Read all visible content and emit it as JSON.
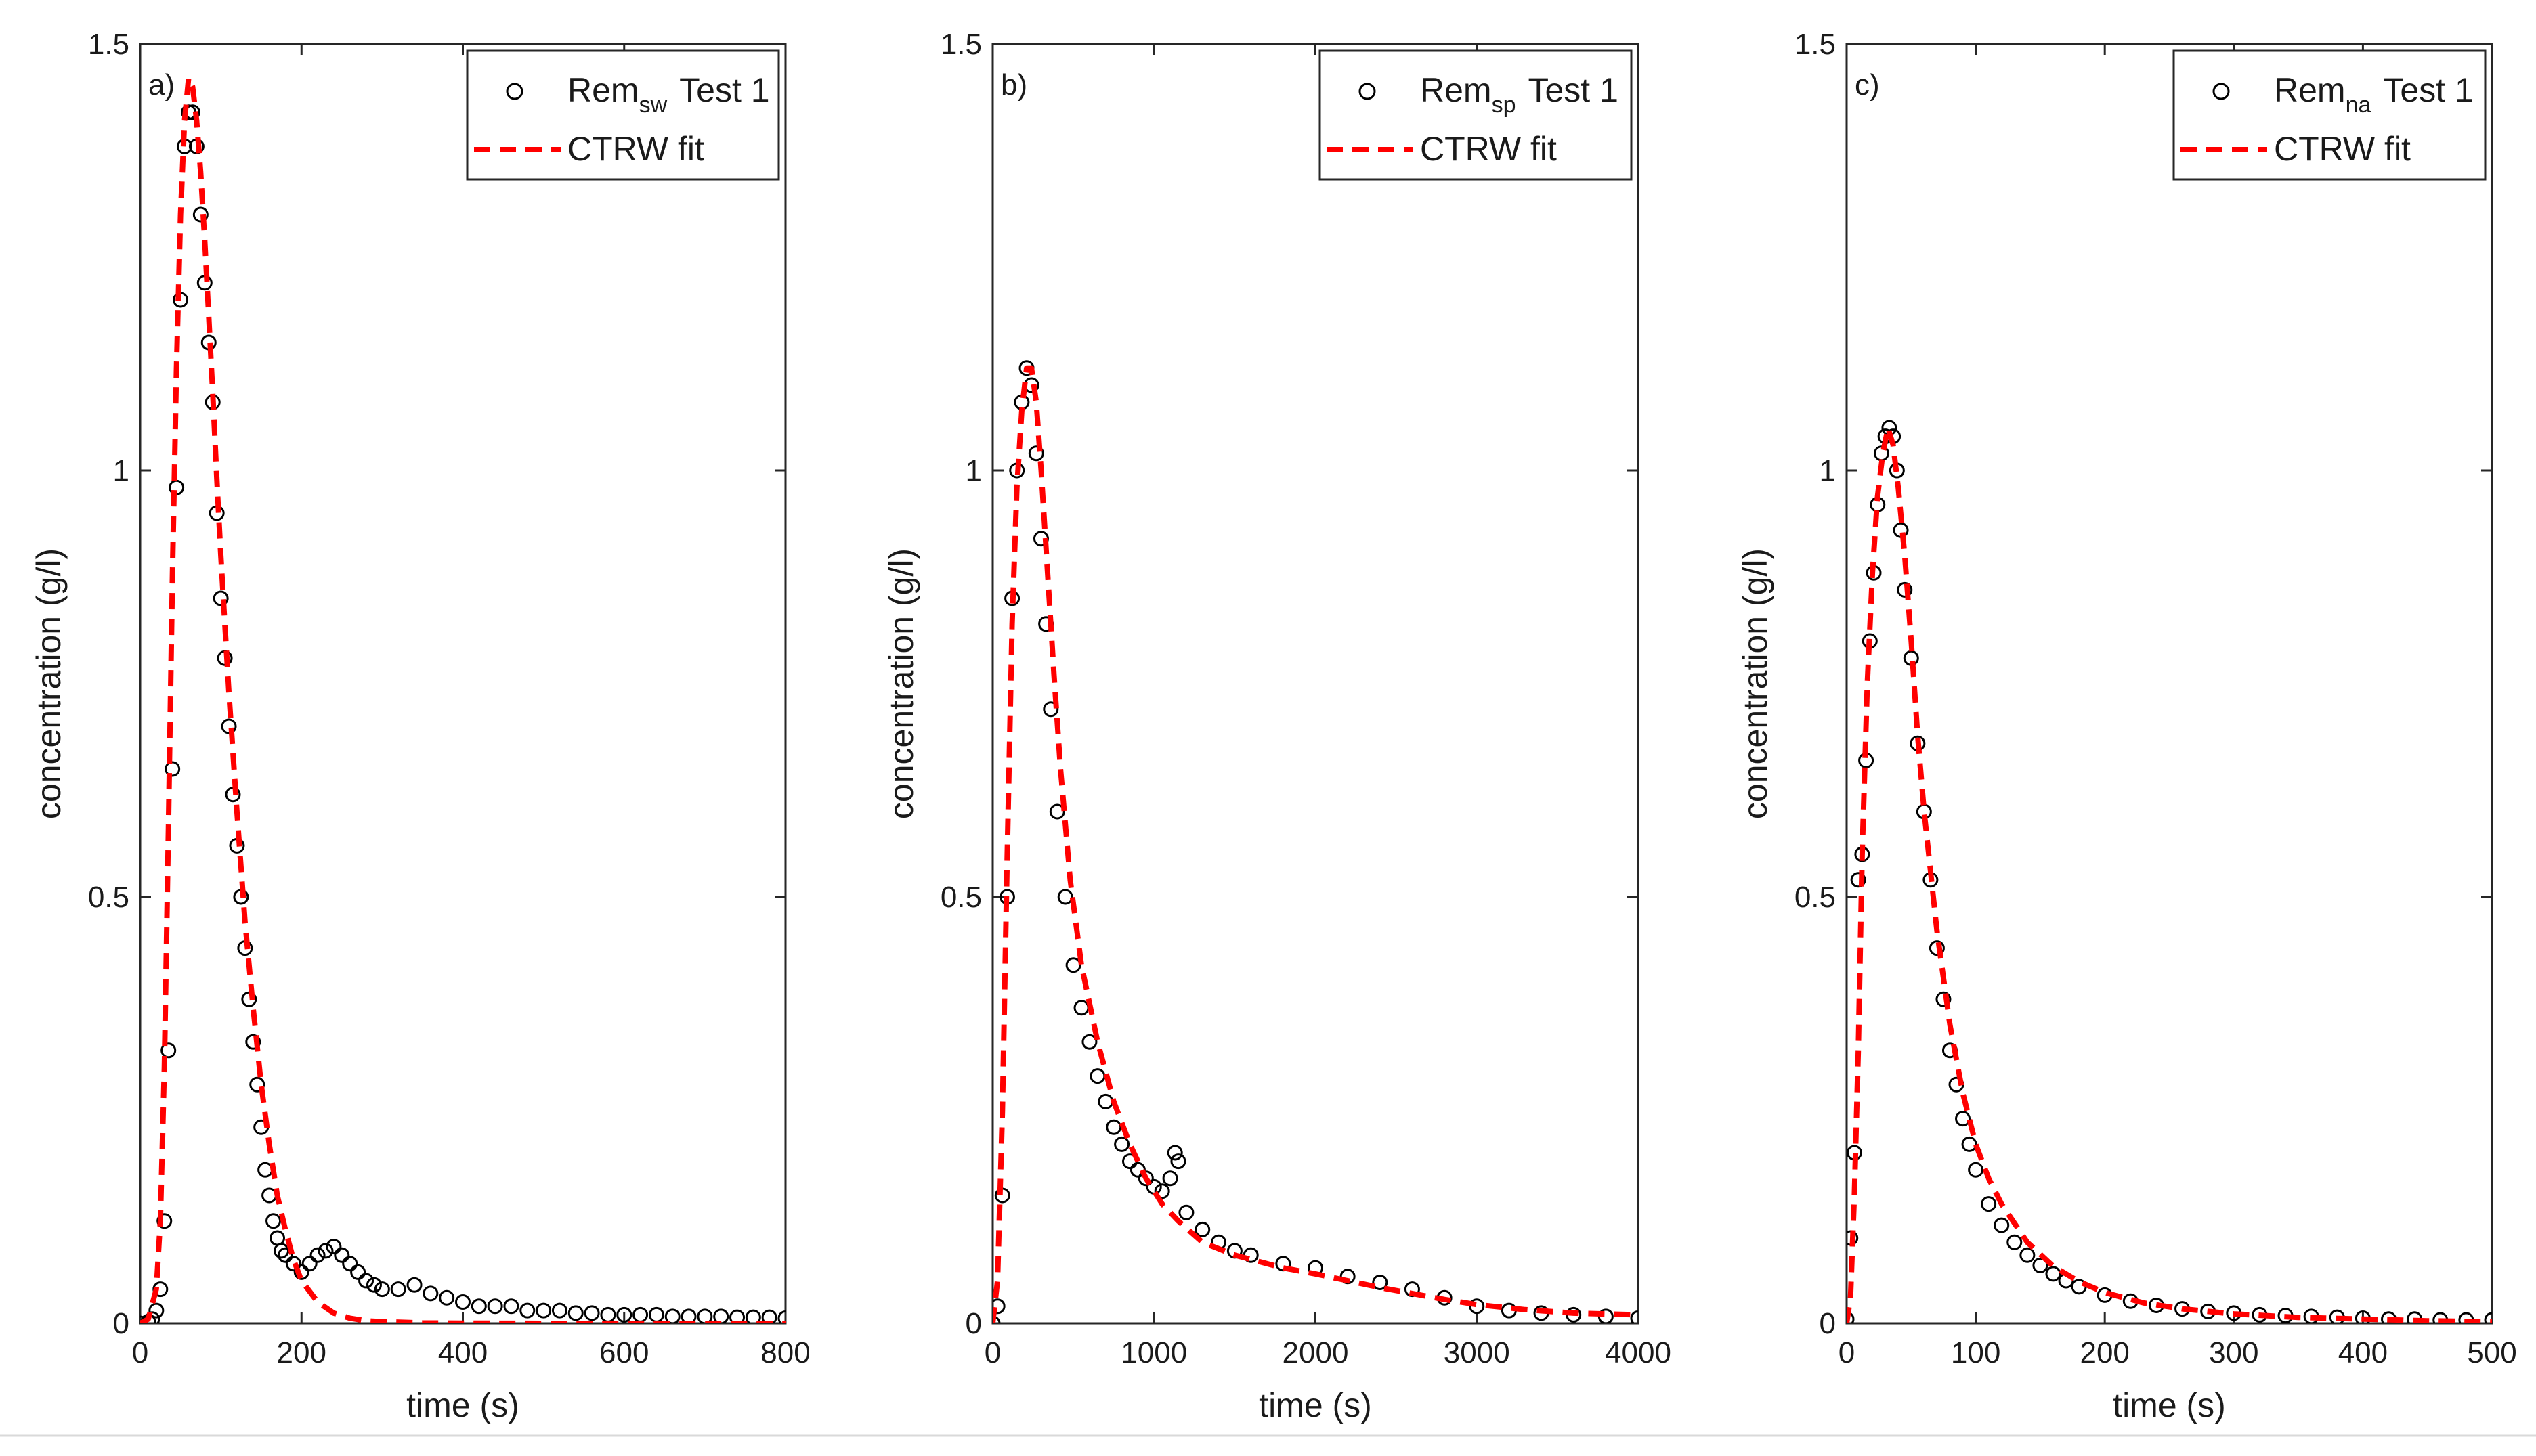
{
  "chart_data": [
    {
      "type": "scatter",
      "panel_label": "a)",
      "xlabel": "time (s)",
      "ylabel": "concentration (g/l)",
      "xlim": [
        0,
        800
      ],
      "ylim": [
        0,
        1.5
      ],
      "xticks": [
        0,
        200,
        400,
        600,
        800
      ],
      "yticks": [
        0,
        0.5,
        1,
        1.5
      ],
      "xtick_labels": [
        "0",
        "200",
        "400",
        "600",
        "800"
      ],
      "ytick_labels": [
        "0",
        "0.5",
        "1",
        "1.5"
      ],
      "legend": {
        "position": "top-right",
        "measured_prefix": "Rem",
        "measured_sub": "sw",
        "measured_suffix": "Test 1",
        "fit_label": "CTRW fit"
      },
      "series": [
        {
          "name": "Rem_sw Test 1",
          "kind": "markers",
          "marker": "open-circle",
          "color": "#000000",
          "x": [
            0,
            10,
            15,
            20,
            25,
            30,
            35,
            40,
            45,
            50,
            55,
            60,
            65,
            70,
            75,
            80,
            85,
            90,
            95,
            100,
            105,
            110,
            115,
            120,
            125,
            130,
            135,
            140,
            145,
            150,
            155,
            160,
            165,
            170,
            175,
            180,
            190,
            200,
            210,
            220,
            230,
            240,
            250,
            260,
            270,
            280,
            290,
            300,
            320,
            340,
            360,
            380,
            400,
            420,
            440,
            460,
            480,
            500,
            520,
            540,
            560,
            580,
            600,
            620,
            640,
            660,
            680,
            700,
            720,
            740,
            760,
            780,
            800
          ],
          "y": [
            0,
            0.002,
            0.005,
            0.015,
            0.04,
            0.12,
            0.32,
            0.65,
            0.98,
            1.2,
            1.38,
            1.42,
            1.42,
            1.38,
            1.3,
            1.22,
            1.15,
            1.08,
            0.95,
            0.85,
            0.78,
            0.7,
            0.62,
            0.56,
            0.5,
            0.44,
            0.38,
            0.33,
            0.28,
            0.23,
            0.18,
            0.15,
            0.12,
            0.1,
            0.085,
            0.08,
            0.07,
            0.06,
            0.07,
            0.08,
            0.085,
            0.09,
            0.08,
            0.07,
            0.06,
            0.05,
            0.045,
            0.04,
            0.04,
            0.045,
            0.035,
            0.03,
            0.025,
            0.02,
            0.02,
            0.02,
            0.015,
            0.015,
            0.015,
            0.012,
            0.012,
            0.01,
            0.01,
            0.01,
            0.01,
            0.008,
            0.008,
            0.008,
            0.008,
            0.007,
            0.007,
            0.007,
            0.006
          ]
        },
        {
          "name": "CTRW fit",
          "kind": "line",
          "style": "dashed",
          "color": "#ff0000",
          "x": [
            0,
            10,
            20,
            25,
            30,
            35,
            40,
            45,
            50,
            55,
            60,
            65,
            70,
            75,
            80,
            85,
            90,
            95,
            100,
            110,
            120,
            130,
            140,
            150,
            160,
            170,
            180,
            190,
            200,
            220,
            240,
            260,
            280,
            300,
            350,
            400,
            500,
            600,
            700,
            800
          ],
          "y": [
            0,
            0.005,
            0.04,
            0.12,
            0.3,
            0.58,
            0.88,
            1.12,
            1.3,
            1.41,
            1.46,
            1.45,
            1.41,
            1.35,
            1.27,
            1.18,
            1.09,
            0.99,
            0.9,
            0.74,
            0.6,
            0.47,
            0.37,
            0.28,
            0.21,
            0.15,
            0.11,
            0.075,
            0.05,
            0.025,
            0.012,
            0.006,
            0.003,
            0.002,
            0.0005,
            0.0002,
            0,
            0,
            0,
            0
          ]
        }
      ]
    },
    {
      "type": "scatter",
      "panel_label": "b)",
      "xlabel": "time (s)",
      "ylabel": "concentration (g/l)",
      "xlim": [
        0,
        4000
      ],
      "ylim": [
        0,
        1.5
      ],
      "xticks": [
        0,
        1000,
        2000,
        3000,
        4000
      ],
      "yticks": [
        0,
        0.5,
        1,
        1.5
      ],
      "xtick_labels": [
        "0",
        "1000",
        "2000",
        "3000",
        "4000"
      ],
      "ytick_labels": [
        "0",
        "0.5",
        "1",
        "1.5"
      ],
      "legend": {
        "position": "top-right",
        "measured_prefix": "Rem",
        "measured_sub": "sp",
        "measured_suffix": "Test 1",
        "fit_label": "CTRW fit"
      },
      "series": [
        {
          "name": "Rem_sp Test 1",
          "kind": "markers",
          "marker": "open-circle",
          "color": "#000000",
          "x": [
            0,
            30,
            60,
            90,
            120,
            150,
            180,
            210,
            240,
            270,
            300,
            330,
            360,
            400,
            450,
            500,
            550,
            600,
            650,
            700,
            750,
            800,
            850,
            900,
            950,
            1000,
            1050,
            1100,
            1130,
            1150,
            1200,
            1300,
            1400,
            1500,
            1600,
            1800,
            2000,
            2200,
            2400,
            2600,
            2800,
            3000,
            3200,
            3400,
            3600,
            3800,
            4000
          ],
          "y": [
            0,
            0.02,
            0.15,
            0.5,
            0.85,
            1.0,
            1.08,
            1.12,
            1.1,
            1.02,
            0.92,
            0.82,
            0.72,
            0.6,
            0.5,
            0.42,
            0.37,
            0.33,
            0.29,
            0.26,
            0.23,
            0.21,
            0.19,
            0.18,
            0.17,
            0.16,
            0.155,
            0.17,
            0.2,
            0.19,
            0.13,
            0.11,
            0.095,
            0.085,
            0.08,
            0.07,
            0.065,
            0.055,
            0.048,
            0.04,
            0.03,
            0.02,
            0.015,
            0.012,
            0.01,
            0.008,
            0.006
          ]
        },
        {
          "name": "CTRW fit",
          "kind": "line",
          "style": "dashed",
          "color": "#ff0000",
          "x": [
            0,
            30,
            60,
            90,
            120,
            150,
            180,
            210,
            240,
            270,
            300,
            340,
            380,
            420,
            480,
            550,
            650,
            750,
            850,
            950,
            1050,
            1150,
            1300,
            1500,
            1800,
            2000,
            2200,
            2400,
            2600,
            2800,
            3000,
            3300,
            3600,
            4000
          ],
          "y": [
            0,
            0.05,
            0.25,
            0.55,
            0.82,
            0.98,
            1.07,
            1.12,
            1.12,
            1.08,
            1.0,
            0.88,
            0.76,
            0.65,
            0.52,
            0.42,
            0.33,
            0.26,
            0.21,
            0.17,
            0.14,
            0.12,
            0.095,
            0.08,
            0.065,
            0.058,
            0.05,
            0.042,
            0.035,
            0.028,
            0.022,
            0.016,
            0.012,
            0.01
          ]
        }
      ]
    },
    {
      "type": "scatter",
      "panel_label": "c)",
      "xlabel": "time (s)",
      "ylabel": "concentration (g/l)",
      "xlim": [
        0,
        500
      ],
      "ylim": [
        0,
        1.5
      ],
      "xticks": [
        0,
        100,
        200,
        300,
        400,
        500
      ],
      "yticks": [
        0,
        0.5,
        1,
        1.5
      ],
      "xtick_labels": [
        "0",
        "100",
        "200",
        "300",
        "400",
        "500"
      ],
      "ytick_labels": [
        "0",
        "0.5",
        "1",
        "1.5"
      ],
      "legend": {
        "position": "top-right",
        "measured_prefix": "Rem",
        "measured_sub": "na",
        "measured_suffix": "Test 1",
        "fit_label": "CTRW fit"
      },
      "series": [
        {
          "name": "Rem_na Test 1",
          "kind": "markers",
          "marker": "open-circle",
          "color": "#000000",
          "x": [
            0,
            3,
            6,
            9,
            12,
            15,
            18,
            21,
            24,
            27,
            30,
            33,
            36,
            39,
            42,
            45,
            50,
            55,
            60,
            65,
            70,
            75,
            80,
            85,
            90,
            95,
            100,
            110,
            120,
            130,
            140,
            150,
            160,
            170,
            180,
            200,
            220,
            240,
            260,
            280,
            300,
            320,
            340,
            360,
            380,
            400,
            420,
            440,
            460,
            480,
            500
          ],
          "y": [
            0.005,
            0.1,
            0.2,
            0.52,
            0.55,
            0.66,
            0.8,
            0.88,
            0.96,
            1.02,
            1.04,
            1.05,
            1.04,
            1.0,
            0.93,
            0.86,
            0.78,
            0.68,
            0.6,
            0.52,
            0.44,
            0.38,
            0.32,
            0.28,
            0.24,
            0.21,
            0.18,
            0.14,
            0.115,
            0.095,
            0.08,
            0.068,
            0.058,
            0.05,
            0.043,
            0.033,
            0.026,
            0.021,
            0.017,
            0.014,
            0.012,
            0.01,
            0.009,
            0.008,
            0.007,
            0.006,
            0.005,
            0.005,
            0.004,
            0.004,
            0.004
          ]
        },
        {
          "name": "CTRW fit",
          "kind": "line",
          "style": "dashed",
          "color": "#ff0000",
          "x": [
            0,
            3,
            6,
            9,
            12,
            16,
            20,
            24,
            28,
            32,
            36,
            40,
            45,
            50,
            55,
            60,
            70,
            80,
            90,
            100,
            110,
            120,
            140,
            160,
            180,
            200,
            230,
            260,
            300,
            350,
            400,
            450,
            500
          ],
          "y": [
            0,
            0.03,
            0.15,
            0.32,
            0.55,
            0.75,
            0.88,
            0.97,
            1.02,
            1.05,
            1.03,
            0.98,
            0.9,
            0.8,
            0.69,
            0.6,
            0.46,
            0.35,
            0.27,
            0.21,
            0.17,
            0.14,
            0.095,
            0.067,
            0.049,
            0.036,
            0.024,
            0.017,
            0.011,
            0.007,
            0.005,
            0.003,
            0.002
          ]
        }
      ]
    }
  ],
  "colors": {
    "marker": "#000000",
    "fit_line": "#ff0000",
    "axis": "#262626",
    "bottom_rule": "#d9d9d9"
  }
}
